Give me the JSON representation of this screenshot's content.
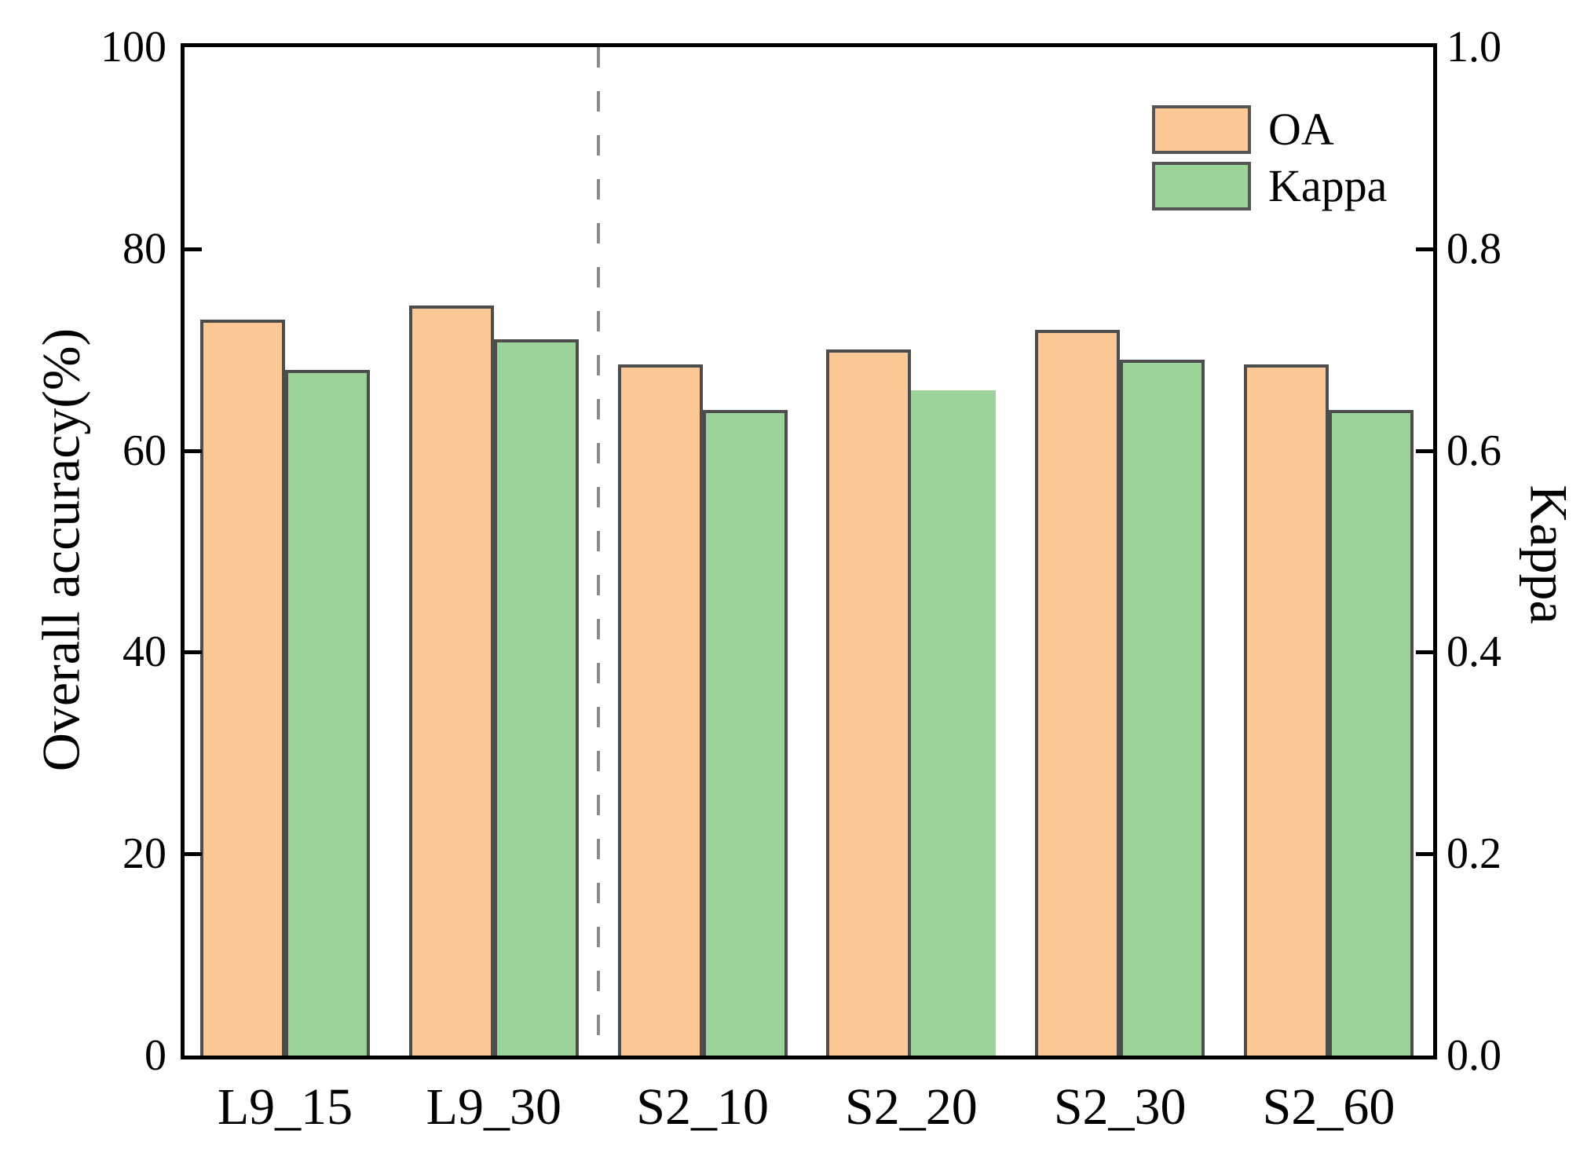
{
  "chart_data": {
    "type": "bar",
    "title": "",
    "categories": [
      "L9_15",
      "L9_30",
      "S2_10",
      "S2_20",
      "S2_30",
      "S2_60"
    ],
    "series": [
      {
        "name": "OA",
        "axis": "left",
        "color": "#FBC896",
        "outline_color": "#4D4D4D",
        "values": [
          73,
          74.4,
          68.5,
          70,
          72,
          68.5
        ]
      },
      {
        "name": "Kappa",
        "axis": "right",
        "color": "#9CD39A",
        "outline_color": "#4D4D4D",
        "values": [
          0.68,
          0.71,
          0.64,
          0.66,
          0.69,
          0.64
        ]
      }
    ],
    "axes": {
      "left": {
        "label": "Overall accuracy(%)",
        "min": 0,
        "max": 100,
        "ticks": [
          "100",
          "80",
          "60",
          "40",
          "20",
          "0"
        ]
      },
      "right": {
        "label": "Kappa",
        "min": 0.0,
        "max": 1.0,
        "ticks": [
          "1.0",
          "0.8",
          "0.6",
          "0.4",
          "0.2",
          "0.0"
        ]
      }
    },
    "legend": {
      "position": "top-right",
      "entries": [
        {
          "label": "OA",
          "color": "#FBC896"
        },
        {
          "label": "Kappa",
          "color": "#9CD39A"
        }
      ]
    },
    "separator": {
      "after_category": "L9_30",
      "style": "dashed",
      "color": "#8A8A8A"
    },
    "bars_without_outline": [
      {
        "series": "Kappa",
        "category": "S2_20"
      }
    ],
    "grid": false,
    "background_color": "#FFFFFF",
    "spine_color": "#000000"
  }
}
